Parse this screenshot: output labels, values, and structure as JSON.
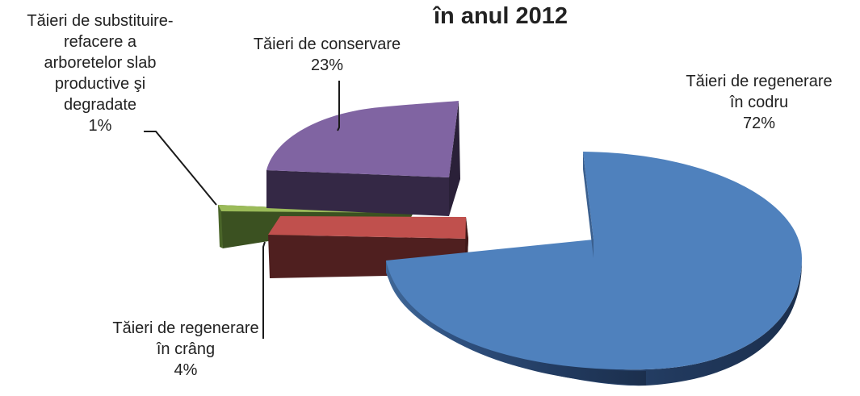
{
  "chart_data": {
    "type": "pie",
    "title": "în anul 2012",
    "slices": [
      {
        "label": [
          "Tăieri de regenerare",
          "în codru"
        ],
        "percent_label": "72%",
        "value": 72,
        "color": "#4f81bd"
      },
      {
        "label": [
          "Tăieri de regenerare",
          "în crâng"
        ],
        "percent_label": "4%",
        "value": 4,
        "color": "#c0504d"
      },
      {
        "label": [
          "Tăieri de substituire-",
          "refacere a",
          "arboretelor slab",
          "productive şi",
          "degradate"
        ],
        "percent_label": "1%",
        "value": 1,
        "color": "#9bbb59"
      },
      {
        "label": [
          "Tăieri de conservare"
        ],
        "percent_label": "23%",
        "value": 23,
        "color": "#8064a2"
      }
    ],
    "style": "3d-exploded"
  }
}
